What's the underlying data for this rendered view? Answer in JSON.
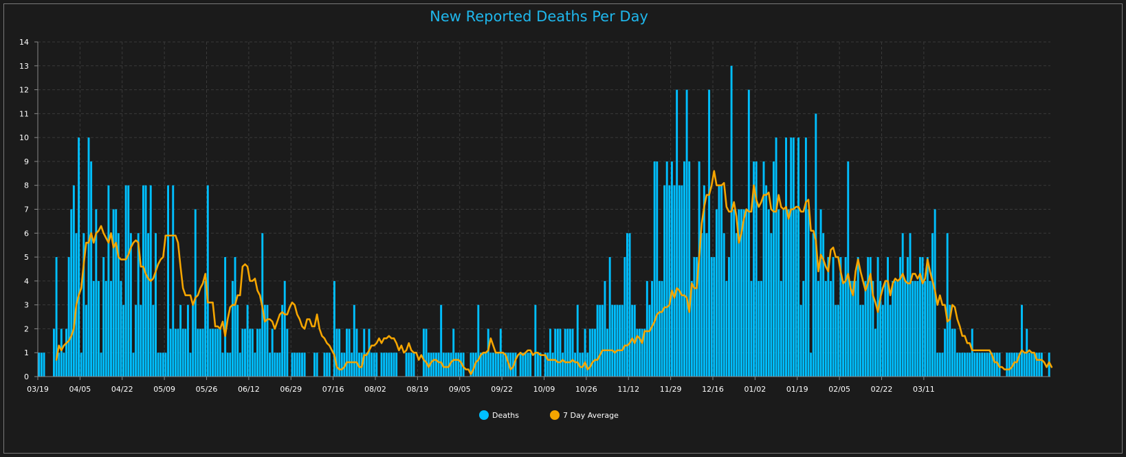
{
  "chart_data": {
    "type": "bar",
    "title": "New Reported Deaths Per Day",
    "xlabel": "",
    "ylabel": "",
    "ylim": [
      0,
      14
    ],
    "y_ticks": [
      0,
      1,
      2,
      3,
      4,
      5,
      6,
      7,
      8,
      9,
      10,
      11,
      12,
      13,
      14
    ],
    "x_ticks": [
      "03/19",
      "04/05",
      "04/22",
      "05/09",
      "05/26",
      "06/12",
      "06/29",
      "07/16",
      "08/02",
      "08/19",
      "09/05",
      "09/22",
      "10/09",
      "10/26",
      "11/12",
      "11/29",
      "12/16",
      "01/02",
      "01/19",
      "02/05",
      "02/22",
      "03/11"
    ],
    "x_tick_days": [
      0,
      17,
      34,
      51,
      68,
      85,
      102,
      119,
      136,
      153,
      170,
      187,
      204,
      221,
      238,
      255,
      272,
      289,
      306,
      323,
      340,
      357
    ],
    "grid": true,
    "legend_position": "bottom-center",
    "series": [
      {
        "name": "Deaths",
        "kind": "bar",
        "color": "#00bfff",
        "values": [
          1,
          1,
          1,
          0,
          0,
          0,
          2,
          5,
          1,
          2,
          1,
          2,
          5,
          7,
          8,
          6,
          10,
          1,
          6,
          3,
          10,
          9,
          4,
          7,
          4,
          1,
          5,
          4,
          8,
          4,
          7,
          7,
          6,
          4,
          3,
          8,
          8,
          6,
          1,
          3,
          6,
          3,
          8,
          8,
          6,
          8,
          3,
          6,
          1,
          1,
          1,
          1,
          8,
          2,
          8,
          2,
          2,
          3,
          2,
          2,
          3,
          1,
          3,
          7,
          2,
          2,
          2,
          4,
          8,
          2,
          2,
          2,
          2,
          2,
          1,
          5,
          1,
          1,
          4,
          5,
          3,
          1,
          2,
          2,
          3,
          2,
          2,
          1,
          2,
          2,
          6,
          3,
          3,
          1,
          2,
          1,
          1,
          1,
          3,
          4,
          2,
          0,
          1,
          1,
          1,
          1,
          1,
          1,
          0,
          0,
          0,
          1,
          1,
          0,
          0,
          1,
          1,
          1,
          0,
          4,
          2,
          2,
          1,
          1,
          2,
          2,
          1,
          3,
          2,
          1,
          1,
          2,
          1,
          2,
          1,
          1,
          1,
          0,
          1,
          1,
          1,
          1,
          1,
          1,
          1,
          0,
          0,
          0,
          1,
          1,
          1,
          1,
          0,
          0,
          0,
          2,
          2,
          1,
          1,
          1,
          1,
          1,
          3,
          1,
          1,
          1,
          1,
          2,
          1,
          1,
          1,
          1,
          0,
          0,
          1,
          1,
          1,
          3,
          1,
          1,
          1,
          2,
          1,
          1,
          1,
          1,
          2,
          1,
          1,
          1,
          1,
          1,
          1,
          0,
          1,
          1,
          1,
          1,
          1,
          0,
          3,
          1,
          1,
          0,
          1,
          1,
          2,
          1,
          2,
          2,
          2,
          1,
          2,
          2,
          2,
          2,
          1,
          3,
          1,
          1,
          2,
          1,
          2,
          2,
          2,
          3,
          3,
          3,
          4,
          2,
          5,
          3,
          3,
          3,
          3,
          3,
          5,
          6,
          6,
          3,
          3,
          2,
          2,
          2,
          2,
          4,
          3,
          4,
          9,
          9,
          4,
          4,
          8,
          9,
          8,
          9,
          8,
          12,
          8,
          8,
          9,
          12,
          9,
          4,
          5,
          5,
          9,
          6,
          8,
          6,
          12,
          5,
          5,
          7,
          8,
          8,
          6,
          4,
          5,
          13,
          7,
          6,
          7,
          7,
          7,
          7,
          12,
          4,
          9,
          9,
          4,
          4,
          9,
          8,
          7,
          6,
          9,
          10,
          7,
          4,
          7,
          10,
          7,
          10,
          10,
          7,
          10,
          3,
          4,
          10,
          7,
          1,
          6,
          11,
          4,
          7,
          6,
          4,
          5,
          4,
          5,
          3,
          3,
          5,
          4,
          5,
          9,
          4,
          4,
          4,
          5,
          3,
          3,
          4,
          5,
          5,
          4,
          2,
          5,
          4,
          3,
          4,
          5,
          3,
          4,
          4,
          4,
          5,
          6,
          4,
          5,
          6,
          4,
          4,
          4,
          5,
          5,
          4,
          5,
          4,
          6,
          7,
          1,
          1,
          1,
          2,
          6,
          3,
          2,
          2,
          1,
          1,
          1,
          1,
          1,
          1,
          2,
          1,
          1,
          1,
          1,
          1,
          1,
          1,
          1,
          1,
          1,
          1,
          0,
          0,
          1,
          1,
          1,
          1,
          1,
          1,
          3,
          1,
          2,
          1,
          1,
          1,
          1,
          1,
          1,
          0,
          0,
          1
        ]
      },
      {
        "name": "7 Day Average",
        "kind": "line",
        "color": "#f5a500",
        "values": [
          null,
          null,
          null,
          null,
          null,
          null,
          null,
          0.7,
          1.3,
          1.1,
          1.3,
          1.4,
          1.5,
          1.7,
          2.0,
          3.0,
          3.4,
          3.7,
          4.7,
          5.6,
          5.6,
          6.0,
          5.6,
          6.0,
          6.1,
          6.3,
          6.0,
          5.8,
          5.6,
          6.0,
          5.4,
          5.6,
          5.0,
          4.9,
          4.9,
          4.9,
          5.1,
          5.4,
          5.6,
          5.7,
          5.6,
          4.6,
          4.6,
          4.3,
          4.1,
          4.0,
          4.1,
          4.4,
          4.7,
          4.9,
          5.0,
          5.9,
          5.9,
          5.9,
          5.9,
          5.9,
          5.6,
          4.6,
          3.7,
          3.4,
          3.4,
          3.4,
          3.0,
          3.3,
          3.4,
          3.7,
          3.9,
          4.3,
          3.1,
          3.1,
          3.1,
          2.1,
          2.1,
          2.0,
          2.3,
          1.7,
          2.4,
          2.9,
          3.0,
          3.0,
          3.4,
          3.4,
          4.6,
          4.7,
          4.6,
          4.0,
          4.0,
          4.1,
          3.6,
          3.4,
          2.9,
          2.3,
          2.4,
          2.4,
          2.3,
          2.0,
          2.3,
          2.6,
          2.7,
          2.6,
          2.6,
          2.9,
          3.1,
          3.0,
          2.6,
          2.4,
          2.1,
          2.0,
          2.4,
          2.4,
          2.1,
          2.1,
          2.6,
          2.0,
          1.7,
          1.6,
          1.4,
          1.3,
          1.1,
          0.9,
          0.4,
          0.3,
          0.3,
          0.4,
          0.6,
          0.6,
          0.6,
          0.6,
          0.6,
          0.4,
          0.4,
          0.9,
          0.9,
          1.1,
          1.3,
          1.3,
          1.4,
          1.6,
          1.4,
          1.6,
          1.6,
          1.7,
          1.6,
          1.6,
          1.4,
          1.1,
          1.3,
          1.0,
          1.1,
          1.4,
          1.1,
          1.0,
          1.0,
          0.7,
          0.9,
          0.7,
          0.6,
          0.4,
          0.6,
          0.7,
          0.7,
          0.6,
          0.6,
          0.4,
          0.4,
          0.4,
          0.6,
          0.7,
          0.7,
          0.7,
          0.6,
          0.4,
          0.3,
          0.3,
          0.1,
          0.3,
          0.6,
          0.7,
          0.9,
          1.0,
          1.0,
          1.1,
          1.6,
          1.3,
          1.0,
          1.0,
          1.0,
          1.0,
          0.9,
          0.6,
          0.3,
          0.4,
          0.7,
          0.9,
          1.0,
          0.9,
          1.0,
          1.1,
          1.1,
          0.9,
          1.0,
          1.0,
          0.9,
          0.9,
          0.9,
          0.7,
          0.7,
          0.7,
          0.7,
          0.6,
          0.6,
          0.7,
          0.6,
          0.6,
          0.6,
          0.7,
          0.6,
          0.6,
          0.4,
          0.4,
          0.6,
          0.3,
          0.4,
          0.6,
          0.7,
          0.7,
          0.9,
          1.1,
          1.1,
          1.1,
          1.1,
          1.1,
          1.0,
          1.1,
          1.1,
          1.1,
          1.3,
          1.3,
          1.4,
          1.6,
          1.4,
          1.7,
          1.6,
          1.4,
          1.9,
          1.9,
          1.9,
          2.1,
          2.3,
          2.6,
          2.7,
          2.7,
          2.9,
          2.9,
          3.0,
          3.6,
          3.3,
          3.7,
          3.6,
          3.4,
          3.4,
          3.3,
          2.7,
          3.9,
          3.7,
          3.7,
          5.0,
          6.4,
          7.1,
          7.6,
          7.6,
          8.0,
          8.6,
          8.0,
          8.0,
          8.0,
          8.1,
          7.1,
          6.9,
          6.9,
          7.3,
          6.7,
          5.6,
          6.0,
          6.6,
          7.0,
          6.9,
          6.9,
          8.0,
          7.4,
          7.1,
          7.3,
          7.6,
          7.6,
          7.7,
          7.0,
          6.9,
          6.9,
          7.6,
          7.1,
          7.0,
          7.1,
          6.6,
          7.0,
          7.0,
          7.1,
          7.1,
          6.9,
          6.9,
          7.3,
          7.4,
          6.1,
          6.1,
          5.7,
          4.4,
          5.1,
          4.9,
          4.6,
          4.4,
          5.3,
          5.4,
          5.0,
          5.0,
          4.4,
          3.9,
          4.0,
          4.3,
          3.7,
          3.4,
          4.4,
          4.9,
          4.4,
          4.0,
          3.6,
          3.9,
          4.3,
          3.4,
          3.1,
          2.7,
          3.3,
          3.7,
          4.0,
          4.0,
          3.4,
          3.9,
          4.1,
          4.0,
          4.1,
          4.3,
          4.0,
          3.9,
          3.9,
          4.3,
          4.3,
          4.1,
          4.3,
          3.9,
          4.1,
          4.9,
          4.4,
          4.0,
          3.6,
          3.0,
          3.4,
          3.0,
          3.0,
          2.3,
          2.4,
          3.0,
          2.9,
          2.4,
          2.1,
          1.7,
          1.7,
          1.4,
          1.4,
          1.1,
          1.1,
          1.1,
          1.1,
          1.1,
          1.1,
          1.1,
          1.1,
          0.9,
          0.6,
          0.6,
          0.4,
          0.4,
          0.3,
          0.3,
          0.3,
          0.4,
          0.6,
          0.6,
          0.9,
          1.1,
          1.0,
          1.0,
          1.1,
          1.0,
          1.0,
          0.7,
          0.7,
          0.7,
          0.6,
          0.4,
          0.6,
          0.4
        ]
      }
    ]
  },
  "colors": {
    "background": "#1b1b1b",
    "grid": "#3a3a3a",
    "axis": "#8a8a8a",
    "title": "#1fb7ec"
  }
}
